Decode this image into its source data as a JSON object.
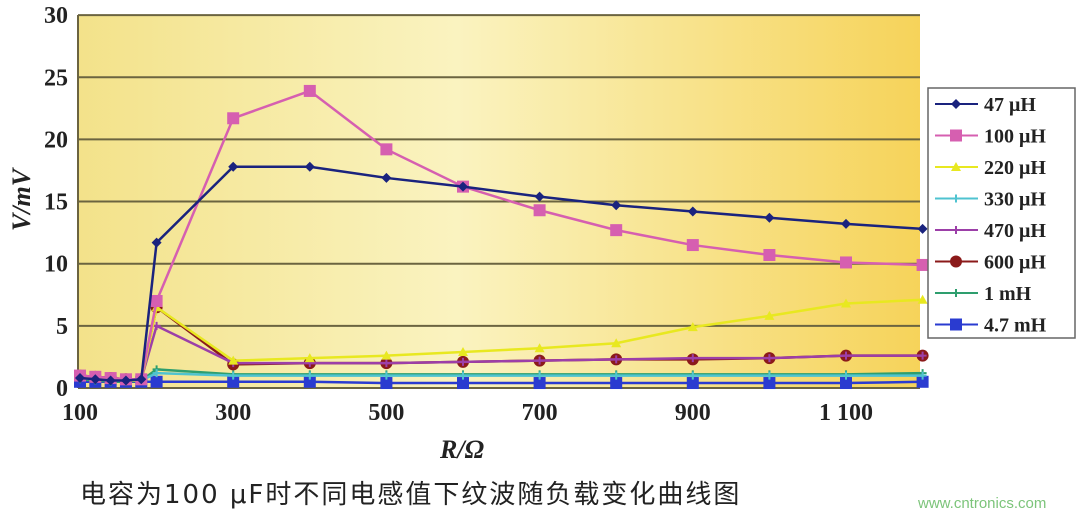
{
  "chart_data": {
    "type": "line",
    "title": "",
    "xlabel": "R/Ω",
    "ylabel": "V/mV",
    "xlim": [
      100,
      1200
    ],
    "ylim": [
      0,
      30
    ],
    "grid": "horizontal",
    "legend": "right",
    "x_ticks": [
      "100",
      "300",
      "500",
      "700",
      "900",
      "1 100"
    ],
    "x_tick_values": [
      100,
      300,
      500,
      700,
      900,
      1100
    ],
    "y_ticks": [
      "0",
      "5",
      "10",
      "15",
      "20",
      "25",
      "30"
    ],
    "x": [
      100,
      120,
      140,
      160,
      180,
      200,
      300,
      400,
      500,
      600,
      700,
      800,
      900,
      1000,
      1100,
      1200
    ],
    "series": [
      {
        "name": "47 μH",
        "color": "#1a237e",
        "marker": "diamond",
        "values": [
          0.8,
          0.7,
          0.6,
          0.6,
          0.7,
          11.7,
          17.8,
          17.8,
          16.9,
          16.2,
          15.4,
          14.7,
          14.2,
          13.7,
          13.2,
          12.8
        ]
      },
      {
        "name": "100 μH",
        "color": "#d65fb0",
        "marker": "square",
        "values": [
          1.0,
          0.9,
          0.8,
          0.7,
          0.7,
          7.0,
          21.7,
          23.9,
          19.2,
          16.2,
          14.3,
          12.7,
          11.5,
          10.7,
          10.1,
          9.9
        ]
      },
      {
        "name": "220 μH",
        "color": "#e8e820",
        "marker": "triangle",
        "values": [
          0.9,
          0.8,
          0.7,
          0.6,
          0.6,
          6.5,
          2.2,
          2.4,
          2.6,
          2.9,
          3.2,
          3.6,
          4.9,
          5.8,
          6.8,
          7.1
        ]
      },
      {
        "name": "330 μH",
        "color": "#4fc3d0",
        "marker": "x",
        "values": [
          0.8,
          0.7,
          0.6,
          0.6,
          0.6,
          1.2,
          1.0,
          1.0,
          1.0,
          1.0,
          1.0,
          1.0,
          1.0,
          1.0,
          1.0,
          1.0
        ]
      },
      {
        "name": "470 μH",
        "color": "#9c3fa8",
        "marker": "star",
        "values": [
          1.0,
          0.9,
          0.8,
          0.7,
          0.7,
          5.0,
          2.0,
          2.0,
          2.0,
          2.1,
          2.2,
          2.3,
          2.4,
          2.4,
          2.6,
          2.6
        ]
      },
      {
        "name": "600 μH",
        "color": "#8b1a1a",
        "marker": "circle",
        "values": [
          1.0,
          0.9,
          0.8,
          0.7,
          0.7,
          6.5,
          1.9,
          2.0,
          2.0,
          2.1,
          2.2,
          2.3,
          2.3,
          2.4,
          2.6,
          2.6
        ]
      },
      {
        "name": "1 mH",
        "color": "#2e9e6e",
        "marker": "plus",
        "values": [
          0.7,
          0.6,
          0.5,
          0.5,
          0.6,
          1.5,
          1.1,
          1.1,
          1.1,
          1.1,
          1.1,
          1.1,
          1.1,
          1.1,
          1.1,
          1.2
        ]
      },
      {
        "name": "4.7 mH",
        "color": "#2a3bd0",
        "marker": "square",
        "values": [
          0.5,
          0.5,
          0.5,
          0.5,
          0.5,
          0.5,
          0.5,
          0.5,
          0.4,
          0.4,
          0.4,
          0.4,
          0.4,
          0.4,
          0.4,
          0.5
        ]
      }
    ]
  },
  "caption": "电容为100 μF时不同电感值下纹波随负载变化曲线图",
  "watermark": "www.cntronics.com"
}
